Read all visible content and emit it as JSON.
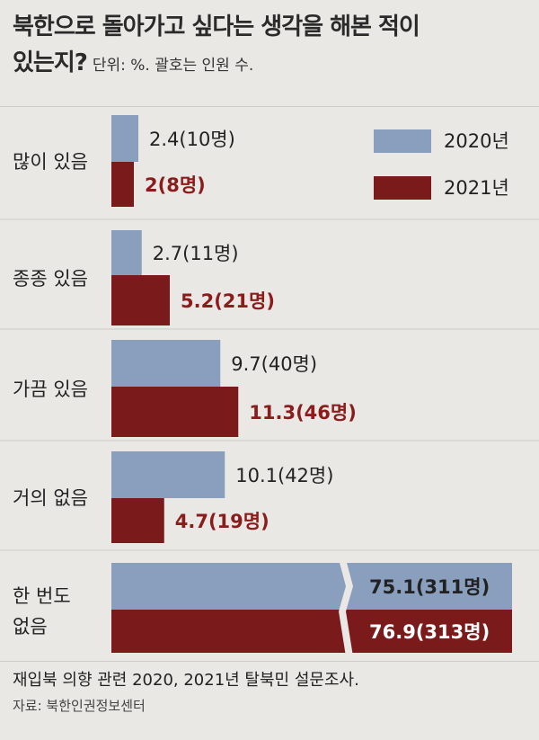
{
  "title": {
    "line1": "북한으로 돌아가고 싶다는 생각을 해본 적이",
    "line2": "있는지?",
    "unit": "단위: %. 괄호는 인원 수."
  },
  "legend": [
    {
      "label": "2020년",
      "color": "#8a9fbd"
    },
    {
      "label": "2021년",
      "color": "#7a1a1a"
    }
  ],
  "chart_data": {
    "type": "bar",
    "orientation": "horizontal",
    "categories": [
      "많이 있음",
      "종종 있음",
      "가끔 있음",
      "거의 없음",
      "한 번도 없음"
    ],
    "series": [
      {
        "name": "2020년",
        "color": "#8a9fbd",
        "values": [
          2.4,
          2.7,
          9.7,
          10.1,
          75.1
        ],
        "labels": [
          "2.4(10명)",
          "2.7(11명)",
          "9.7(40명)",
          "10.1(42명)",
          "75.1(311명)"
        ]
      },
      {
        "name": "2021년",
        "color": "#7a1a1a",
        "values": [
          2,
          5.2,
          11.3,
          4.7,
          76.9
        ],
        "labels": [
          "2(8명)",
          "5.2(21명)",
          "11.3(46명)",
          "4.7(19명)",
          "76.9(313명)"
        ]
      }
    ],
    "axis_break": true,
    "label_colors": {
      "2020년": "#222222",
      "2021년": "#8b1c1c",
      "on_bar": "#ffffff"
    }
  },
  "footer": {
    "note": "재입북 의향 관련 2020, 2021년 탈북민 설문조사.",
    "source": "자료: 북한인권정보센터"
  }
}
